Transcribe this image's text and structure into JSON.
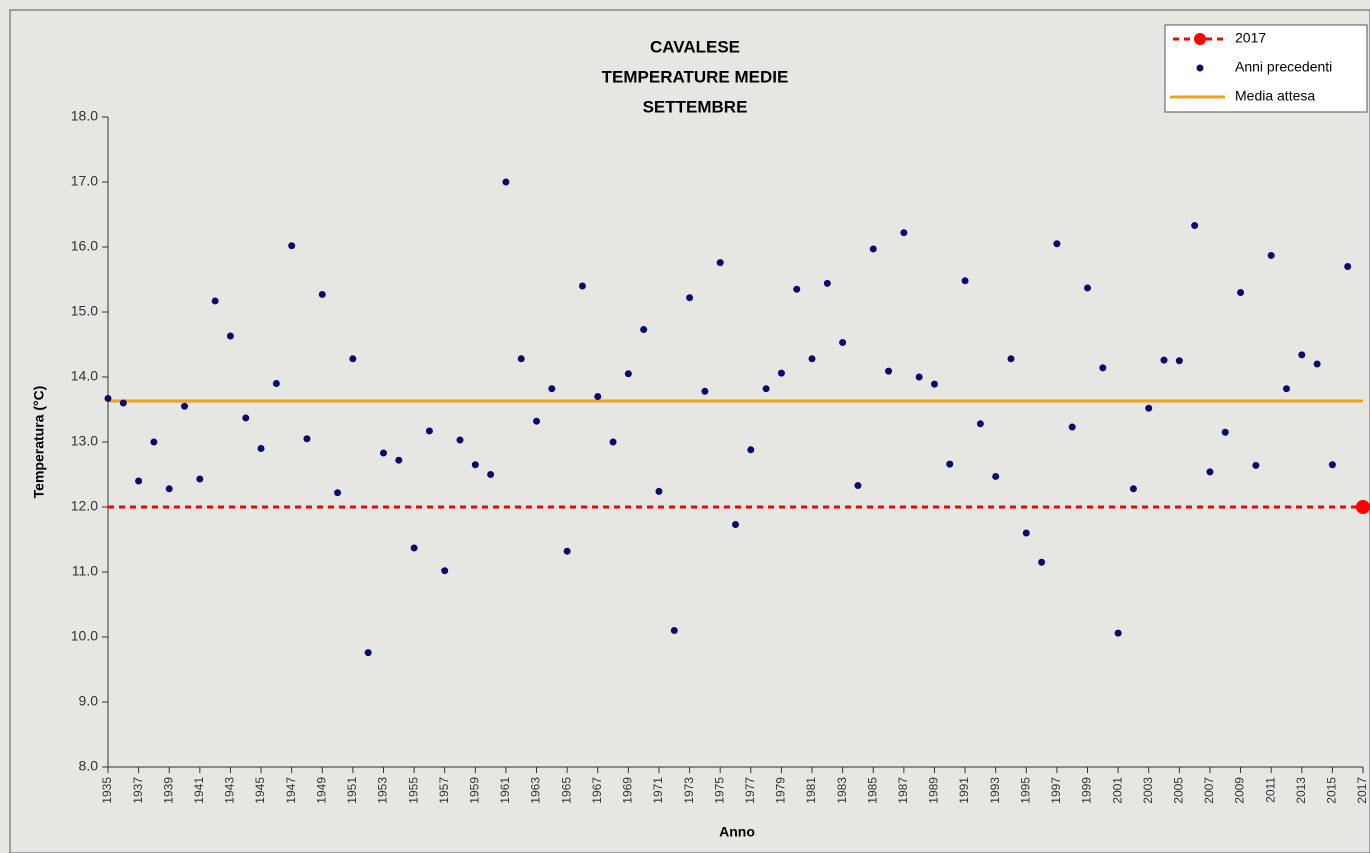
{
  "chart_data": {
    "type": "scatter",
    "title": [
      "CAVALESE",
      "TEMPERATURE MEDIE",
      "SETTEMBRE"
    ],
    "xlabel": "Anno",
    "ylabel": "Temperatura (°C)",
    "xlim": [
      1935,
      2017
    ],
    "ylim": [
      8,
      18
    ],
    "xticks": [
      1935,
      1937,
      1939,
      1941,
      1943,
      1945,
      1947,
      1949,
      1951,
      1953,
      1955,
      1957,
      1959,
      1961,
      1963,
      1965,
      1967,
      1969,
      1971,
      1973,
      1975,
      1977,
      1979,
      1981,
      1983,
      1985,
      1987,
      1989,
      1991,
      1993,
      1995,
      1997,
      1999,
      2001,
      2003,
      2005,
      2007,
      2009,
      2011,
      2013,
      2015,
      2017
    ],
    "yticks": [
      {
        "value": 8,
        "label": "8.0"
      },
      {
        "value": 9,
        "label": "9.0"
      },
      {
        "value": 10,
        "label": "10.0"
      },
      {
        "value": 11,
        "label": "11.0"
      },
      {
        "value": 12,
        "label": "12.0"
      },
      {
        "value": 13,
        "label": "13.0"
      },
      {
        "value": 14,
        "label": "14.0"
      },
      {
        "value": 15,
        "label": "15.0"
      },
      {
        "value": 16,
        "label": "16.0"
      },
      {
        "value": 17,
        "label": "17.0"
      },
      {
        "value": 18,
        "label": "18.0"
      }
    ],
    "legend": "upper right",
    "series": [
      {
        "name": "2017",
        "color": "#ff0000",
        "style": "dashed-line-and-dot",
        "x": [
          2017
        ],
        "values": [
          12.0
        ]
      },
      {
        "name": "Anni precedenti",
        "color": "#0a0a6e",
        "style": "dots",
        "x": [
          1935,
          1936,
          1937,
          1938,
          1939,
          1940,
          1941,
          1942,
          1943,
          1944,
          1945,
          1946,
          1947,
          1948,
          1949,
          1950,
          1951,
          1952,
          1953,
          1954,
          1955,
          1956,
          1957,
          1958,
          1959,
          1960,
          1961,
          1962,
          1963,
          1964,
          1965,
          1966,
          1967,
          1968,
          1969,
          1970,
          1971,
          1972,
          1973,
          1974,
          1975,
          1976,
          1977,
          1978,
          1979,
          1980,
          1981,
          1982,
          1983,
          1984,
          1985,
          1986,
          1987,
          1988,
          1989,
          1990,
          1991,
          1992,
          1993,
          1994,
          1995,
          1996,
          1997,
          1998,
          1999,
          2000,
          2001,
          2002,
          2003,
          2004,
          2005,
          2006,
          2007,
          2008,
          2009,
          2010,
          2011,
          2012,
          2013,
          2014,
          2015,
          2016
        ],
        "values": [
          13.67,
          13.6,
          12.4,
          13.0,
          12.28,
          13.55,
          12.43,
          15.17,
          14.63,
          13.37,
          12.9,
          13.9,
          16.02,
          13.05,
          15.27,
          12.22,
          14.28,
          9.76,
          12.83,
          12.72,
          11.37,
          13.17,
          11.02,
          13.03,
          12.65,
          12.5,
          17.0,
          14.28,
          13.32,
          13.82,
          11.32,
          15.4,
          13.7,
          13.0,
          14.05,
          14.73,
          12.24,
          10.1,
          15.22,
          13.78,
          15.76,
          11.73,
          12.88,
          13.82,
          14.06,
          15.35,
          14.28,
          15.44,
          14.53,
          12.33,
          15.97,
          14.09,
          16.22,
          14.0,
          13.89,
          12.66,
          15.48,
          13.28,
          12.47,
          14.28,
          11.6,
          11.15,
          16.05,
          13.23,
          15.37,
          14.14,
          10.06,
          12.28,
          13.52,
          14.26,
          14.25,
          16.33,
          12.54,
          13.15,
          15.3,
          12.64,
          15.87,
          13.82,
          14.34,
          14.2,
          12.65,
          15.7
        ]
      },
      {
        "name": "Media attesa",
        "color": "#f0a020",
        "style": "line",
        "values": [
          13.63
        ]
      }
    ]
  }
}
